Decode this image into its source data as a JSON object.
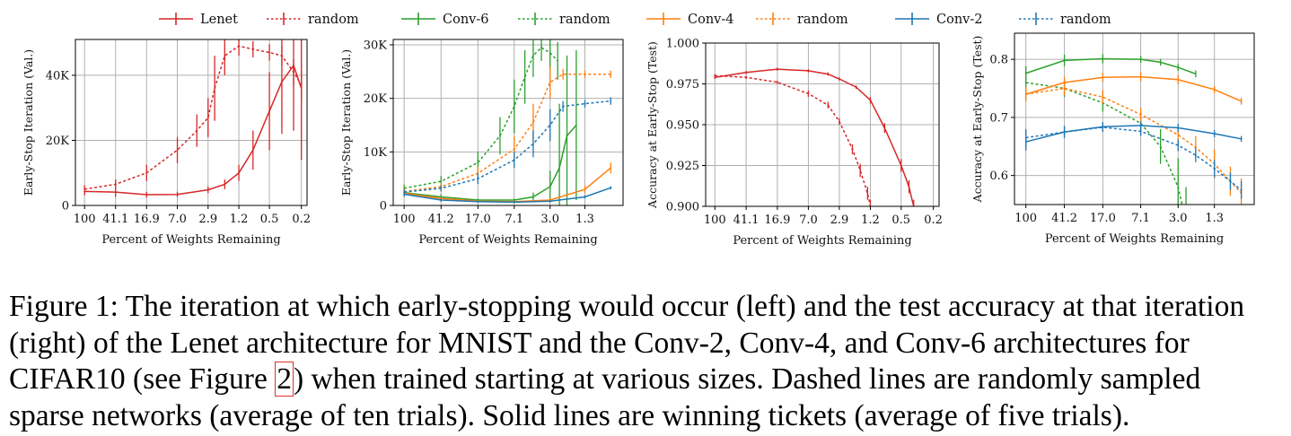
{
  "colors": {
    "lenet": "#d62728",
    "conv6": "#2ca02c",
    "conv4": "#ff7f0e",
    "conv2": "#1f77b4"
  },
  "legend": [
    {
      "label": "Lenet",
      "color": "#d62728",
      "style": "solid"
    },
    {
      "label": "random",
      "color": "#d62728",
      "style": "dashed"
    },
    {
      "label": "Conv-6",
      "color": "#2ca02c",
      "style": "solid"
    },
    {
      "label": "random",
      "color": "#2ca02c",
      "style": "dashed"
    },
    {
      "label": "Conv-4",
      "color": "#ff7f0e",
      "style": "solid"
    },
    {
      "label": "random",
      "color": "#ff7f0e",
      "style": "dashed"
    },
    {
      "label": "Conv-2",
      "color": "#1f77b4",
      "style": "solid"
    },
    {
      "label": "random",
      "color": "#1f77b4",
      "style": "dashed"
    }
  ],
  "chart_data": [
    {
      "type": "line",
      "xlabel": "Percent of Weights Remaining",
      "ylabel": "Early-Stop Iteration (Val.)",
      "x_ticks": [
        100,
        41.1,
        16.9,
        7.0,
        2.9,
        1.2,
        0.5,
        0.2
      ],
      "x_tick_labels": [
        "100",
        "41.1",
        "16.9",
        "7.0",
        "2.9",
        "1.2",
        "0.5",
        "0.2"
      ],
      "xlim": [
        130,
        0.17
      ],
      "ylim": [
        0,
        51000
      ],
      "y_ticks": [
        0,
        20000,
        40000
      ],
      "y_tick_labels": [
        "0",
        "20K",
        "40K"
      ],
      "grid": true,
      "series": [
        {
          "name": "Lenet",
          "color": "#d62728",
          "style": "solid",
          "x": [
            100,
            41.1,
            16.9,
            7.0,
            2.9,
            1.8,
            1.2,
            0.8,
            0.5,
            0.35,
            0.25,
            0.2
          ],
          "y": [
            4300,
            4100,
            3300,
            3400,
            4800,
            6500,
            10000,
            17000,
            29000,
            38000,
            43000,
            36000
          ],
          "err": [
            1200,
            1500,
            900,
            800,
            1000,
            1500,
            2500,
            6000,
            12000,
            16000,
            20000,
            22000
          ]
        },
        {
          "name": "random",
          "color": "#d62728",
          "style": "dashed",
          "x": [
            100,
            41.1,
            16.9,
            7.0,
            4.0,
            2.9,
            2.4,
            1.8,
            1.2,
            0.8,
            0.5,
            0.35,
            0.25,
            0.2
          ],
          "y": [
            5000,
            6500,
            10000,
            17000,
            23000,
            27000,
            36000,
            46000,
            49000,
            48000,
            47000,
            46000,
            41000,
            37000
          ],
          "err": [
            1200,
            1500,
            2500,
            4000,
            5000,
            6000,
            10000,
            6000,
            3000,
            2500,
            2500,
            3000,
            4000,
            4500
          ]
        }
      ]
    },
    {
      "type": "line",
      "xlabel": "Percent of Weights Remaining",
      "ylabel": "Early-Stop Iteration (Val.)",
      "x_ticks": [
        100,
        41.2,
        17.0,
        7.1,
        3.0,
        1.3
      ],
      "x_tick_labels": [
        "100",
        "41.2",
        "17.0",
        "7.1",
        "3.0",
        "1.3"
      ],
      "xlim": [
        130,
        0.52
      ],
      "ylim": [
        0,
        31000
      ],
      "y_ticks": [
        0,
        10000,
        20000,
        30000
      ],
      "y_tick_labels": [
        "0",
        "10K",
        "20K",
        "30K"
      ],
      "grid": true,
      "series": [
        {
          "name": "Conv-6",
          "color": "#2ca02c",
          "style": "solid",
          "x": [
            100,
            41.2,
            17.0,
            7.1,
            4.5,
            3.0,
            2.4,
            2.0,
            1.6
          ],
          "y": [
            2400,
            1600,
            1000,
            1000,
            1600,
            3500,
            7000,
            13000,
            15000
          ],
          "err": [
            700,
            500,
            300,
            300,
            800,
            3000,
            12000,
            15000,
            14000
          ]
        },
        {
          "name": "random",
          "color": "#2ca02c",
          "style": "dashed",
          "x": [
            100,
            41.2,
            17.0,
            10.0,
            7.1,
            5.5,
            4.5,
            3.7,
            3.0,
            2.5
          ],
          "y": [
            3200,
            4500,
            8000,
            13000,
            18500,
            24000,
            28000,
            29500,
            28500,
            27000
          ],
          "err": [
            700,
            1000,
            2000,
            3500,
            5000,
            5000,
            4000,
            2500,
            3000,
            3500
          ]
        },
        {
          "name": "Conv-4",
          "color": "#ff7f0e",
          "style": "solid",
          "x": [
            100,
            41.2,
            17.0,
            7.1,
            3.0,
            1.3,
            0.7
          ],
          "y": [
            2300,
            1300,
            800,
            700,
            1000,
            3000,
            7000
          ],
          "err": [
            500,
            300,
            200,
            200,
            300,
            700,
            1000
          ]
        },
        {
          "name": "random",
          "color": "#ff7f0e",
          "style": "dashed",
          "x": [
            100,
            41.2,
            17.0,
            7.1,
            4.5,
            3.0,
            2.2,
            1.3,
            0.7
          ],
          "y": [
            2600,
            3500,
            6000,
            10500,
            15500,
            23000,
            24500,
            24500,
            24500
          ],
          "err": [
            500,
            700,
            1200,
            2500,
            3500,
            3000,
            1000,
            700,
            700
          ]
        },
        {
          "name": "Conv-2",
          "color": "#1f77b4",
          "style": "solid",
          "x": [
            100,
            41.2,
            17.0,
            7.1,
            3.0,
            1.3,
            0.7
          ],
          "y": [
            2100,
            1000,
            700,
            600,
            800,
            1600,
            3300
          ],
          "err": [
            500,
            300,
            200,
            200,
            200,
            300,
            300
          ]
        },
        {
          "name": "random",
          "color": "#1f77b4",
          "style": "dashed",
          "x": [
            100,
            41.2,
            17.0,
            7.1,
            4.5,
            3.0,
            2.2,
            1.3,
            0.7
          ],
          "y": [
            2500,
            3200,
            5000,
            8500,
            11500,
            15000,
            18500,
            19000,
            19500
          ],
          "err": [
            500,
            600,
            1000,
            1500,
            2500,
            3000,
            1000,
            700,
            700
          ]
        }
      ]
    },
    {
      "type": "line",
      "xlabel": "Percent of Weights Remaining",
      "ylabel": "Accuracy at Early-Stop (Test)",
      "x_ticks": [
        100,
        41.1,
        16.9,
        7.0,
        2.9,
        1.2,
        0.5,
        0.2
      ],
      "x_tick_labels": [
        "100",
        "41.1",
        "16.9",
        "7.0",
        "2.9",
        "1.2",
        "0.5",
        "0.2"
      ],
      "xlim": [
        130,
        0.17
      ],
      "ylim": [
        0.9,
        1.0
      ],
      "y_ticks": [
        0.9,
        0.925,
        0.95,
        0.975,
        1.0
      ],
      "y_tick_labels": [
        "0.900",
        "0.925",
        "0.950",
        "0.975",
        "1.000"
      ],
      "grid": true,
      "series": [
        {
          "name": "Lenet",
          "color": "#d62728",
          "style": "solid",
          "x": [
            100,
            41.1,
            16.9,
            7.0,
            4.0,
            2.9,
            1.8,
            1.2,
            0.8,
            0.5,
            0.4,
            0.35
          ],
          "y": [
            0.979,
            0.982,
            0.984,
            0.983,
            0.981,
            0.978,
            0.973,
            0.965,
            0.948,
            0.925,
            0.912,
            0.9
          ],
          "err": [
            0.001,
            0.001,
            0.001,
            0.001,
            0.001,
            0.001,
            0.001,
            0.002,
            0.003,
            0.004,
            0.004,
            0.004
          ]
        },
        {
          "name": "random",
          "color": "#d62728",
          "style": "dashed",
          "x": [
            100,
            41.1,
            16.9,
            7.0,
            4.0,
            2.9,
            2.0,
            1.6,
            1.3,
            1.2
          ],
          "y": [
            0.98,
            0.979,
            0.976,
            0.969,
            0.962,
            0.952,
            0.935,
            0.922,
            0.908,
            0.9
          ],
          "err": [
            0.001,
            0.001,
            0.001,
            0.002,
            0.002,
            0.002,
            0.003,
            0.004,
            0.004,
            0.004
          ]
        }
      ]
    },
    {
      "type": "line",
      "xlabel": "Percent of Weights Remaining",
      "ylabel": "Accuracy at Early-Stop (Test)",
      "x_ticks": [
        100,
        41.2,
        17.0,
        7.1,
        3.0,
        1.3
      ],
      "x_tick_labels": [
        "100",
        "41.2",
        "17.0",
        "7.1",
        "3.0",
        "1.3"
      ],
      "xlim": [
        130,
        0.52
      ],
      "ylim": [
        0.55,
        0.845
      ],
      "y_ticks": [
        0.6,
        0.7,
        0.8
      ],
      "y_tick_labels": [
        "0.6",
        "0.7",
        "0.8"
      ],
      "grid": true,
      "series": [
        {
          "name": "Conv-6",
          "color": "#2ca02c",
          "style": "solid",
          "x": [
            100,
            41.2,
            17.0,
            7.1,
            4.5,
            3.0,
            2.0
          ],
          "y": [
            0.776,
            0.798,
            0.801,
            0.8,
            0.795,
            0.786,
            0.775
          ],
          "err": [
            0.012,
            0.01,
            0.008,
            0.006,
            0.006,
            0.006,
            0.006
          ]
        },
        {
          "name": "random",
          "color": "#2ca02c",
          "style": "dashed",
          "x": [
            100,
            41.2,
            17.0,
            7.1,
            4.5,
            3.0,
            2.5
          ],
          "y": [
            0.76,
            0.75,
            0.725,
            0.69,
            0.65,
            0.58,
            0.52
          ],
          "err": [
            0.015,
            0.015,
            0.015,
            0.02,
            0.03,
            0.05,
            0.06
          ]
        },
        {
          "name": "Conv-4",
          "color": "#ff7f0e",
          "style": "solid",
          "x": [
            100,
            41.2,
            17.0,
            7.1,
            3.0,
            1.3,
            0.7
          ],
          "y": [
            0.74,
            0.76,
            0.769,
            0.77,
            0.765,
            0.748,
            0.728
          ],
          "err": [
            0.012,
            0.01,
            0.008,
            0.008,
            0.008,
            0.006,
            0.006
          ]
        },
        {
          "name": "random",
          "color": "#ff7f0e",
          "style": "dashed",
          "x": [
            100,
            41.2,
            17.0,
            7.1,
            3.0,
            2.0,
            1.3,
            0.9,
            0.7
          ],
          "y": [
            0.74,
            0.75,
            0.735,
            0.705,
            0.67,
            0.648,
            0.62,
            0.59,
            0.57
          ],
          "err": [
            0.012,
            0.012,
            0.012,
            0.012,
            0.015,
            0.02,
            0.025,
            0.025,
            0.025
          ]
        },
        {
          "name": "Conv-2",
          "color": "#1f77b4",
          "style": "solid",
          "x": [
            100,
            41.2,
            17.0,
            7.1,
            3.0,
            1.3,
            0.7
          ],
          "y": [
            0.658,
            0.675,
            0.684,
            0.686,
            0.682,
            0.672,
            0.663
          ],
          "err": [
            0.015,
            0.01,
            0.008,
            0.007,
            0.007,
            0.006,
            0.005
          ]
        },
        {
          "name": "random",
          "color": "#1f77b4",
          "style": "dashed",
          "x": [
            100,
            41.2,
            17.0,
            7.1,
            3.0,
            2.0,
            1.3,
            0.9,
            0.7
          ],
          "y": [
            0.665,
            0.675,
            0.683,
            0.676,
            0.652,
            0.635,
            0.612,
            0.59,
            0.575
          ],
          "err": [
            0.015,
            0.01,
            0.008,
            0.008,
            0.01,
            0.012,
            0.015,
            0.015,
            0.015
          ]
        }
      ]
    }
  ],
  "caption": {
    "line1": "Figure 1: The iteration at which early-stopping would occur (left) and the test accuracy at that iteration",
    "line2": "(right) of the Lenet architecture for MNIST and the Conv-2, Conv-4, and Conv-6 architectures for",
    "line3_prefix": "CIFAR10 (see Figure ",
    "line3_ref": "2",
    "line3_suffix": ") when trained starting at various sizes. Dashed lines are randomly sampled",
    "line4": "sparse networks (average of ten trials). Solid lines are winning tickets (average of five trials)."
  }
}
